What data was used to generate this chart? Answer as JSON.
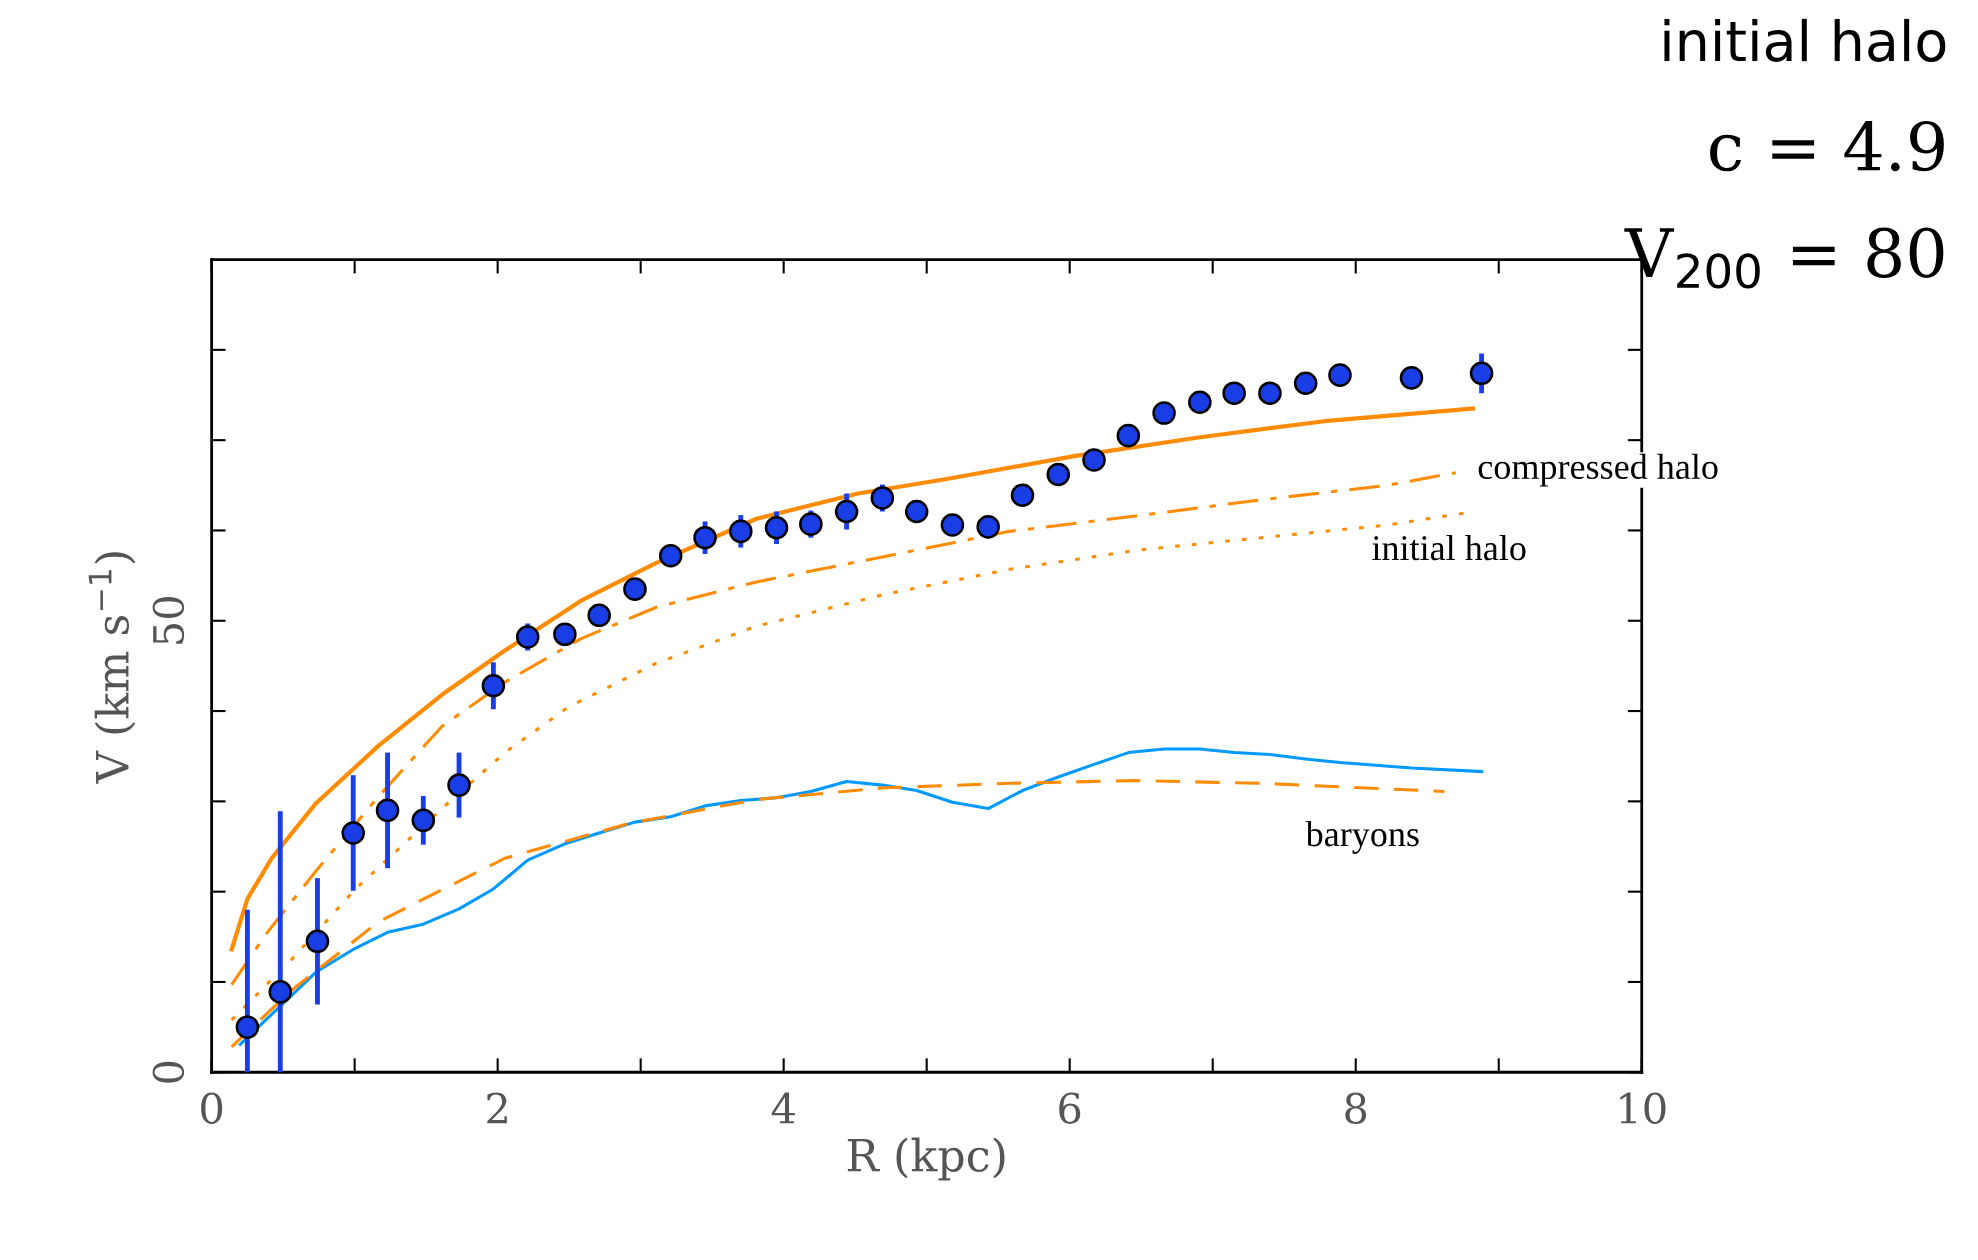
{
  "chart_data": {
    "type": "scatter",
    "xlabel": "R (kpc)",
    "ylabel": "V (km s$^{−1}$)",
    "xlim": [
      0,
      10
    ],
    "ylim": [
      0,
      90
    ],
    "xticks": [
      0,
      {
        "value": 1,
        "label": null
      },
      2,
      {
        "value": 3,
        "label": null
      },
      4,
      {
        "value": 5,
        "label": null
      },
      6,
      {
        "value": 7,
        "label": null
      },
      8,
      {
        "value": 9,
        "label": null
      },
      10
    ],
    "yticks": [
      0,
      {
        "value": 10,
        "label": null
      },
      {
        "value": 20,
        "label": null
      },
      {
        "value": 30,
        "label": null
      },
      {
        "value": 40,
        "label": null
      },
      50,
      {
        "value": 60,
        "label": null
      },
      {
        "value": 70,
        "label": null
      },
      {
        "value": 80,
        "label": null
      }
    ],
    "grid": false,
    "legend": false,
    "series": [
      {
        "type": "line",
        "color": "#ff8c00",
        "line_style": "solid",
        "x": [
          0.14,
          0.25,
          0.42,
          0.73,
          1.17,
          1.61,
          2.05,
          2.58,
          3.11,
          3.81,
          4.52,
          5.14,
          6.02,
          6.9,
          7.78,
          8.82
        ],
        "values": [
          13.6,
          19.2,
          23.7,
          29.8,
          36.2,
          41.8,
          46.7,
          52.2,
          56.4,
          61.3,
          64.1,
          65.7,
          68.2,
          70.3,
          72.1,
          73.5
        ]
      },
      {
        "type": "line",
        "color": "#ff8c00",
        "line_style": "dashdot",
        "x": [
          0.14,
          0.38,
          0.73,
          1.17,
          1.61,
          2.05,
          2.58,
          3.11,
          3.81,
          4.7,
          5.58,
          6.46,
          7.34,
          8.22,
          8.7
        ],
        "values": [
          9.7,
          15.3,
          22.3,
          30.6,
          38.3,
          43.2,
          48.0,
          51.5,
          54.3,
          57.1,
          59.9,
          61.6,
          63.4,
          65.0,
          66.4
        ]
      },
      {
        "type": "line",
        "color": "#ff8c00",
        "line_style": "dotted",
        "x": [
          0.14,
          0.56,
          1.0,
          1.61,
          2.05,
          2.49,
          3.11,
          3.81,
          4.7,
          5.58,
          6.46,
          7.34,
          8.22,
          8.79
        ],
        "values": [
          5.8,
          12.5,
          20.2,
          29.2,
          35.4,
          40.4,
          45.3,
          49.4,
          52.9,
          55.7,
          57.8,
          59.2,
          60.6,
          62.0
        ]
      },
      {
        "type": "line",
        "color": "#ff8c00",
        "line_style": "dashed",
        "x": [
          0.14,
          0.56,
          1.17,
          2.05,
          2.93,
          3.81,
          4.7,
          5.58,
          6.46,
          7.34,
          8.62
        ],
        "values": [
          2.8,
          9.1,
          16.7,
          23.7,
          27.6,
          30.2,
          31.5,
          32.0,
          32.3,
          32.0,
          31.1
        ]
      },
      {
        "type": "line",
        "color": "#0099ff",
        "line_style": "solid",
        "x": [
          0.2,
          0.73,
          0.99,
          1.23,
          1.48,
          1.73,
          1.97,
          2.21,
          2.47,
          2.71,
          2.96,
          3.21,
          3.45,
          3.7,
          3.95,
          4.19,
          4.44,
          4.69,
          4.93,
          5.18,
          5.43,
          5.67,
          5.92,
          6.17,
          6.41,
          6.66,
          6.91,
          7.15,
          7.4,
          7.65,
          7.89,
          8.39,
          8.88
        ],
        "values": [
          3.1,
          11.1,
          13.6,
          15.5,
          16.4,
          18.1,
          20.3,
          23.5,
          25.3,
          26.5,
          27.7,
          28.3,
          29.5,
          30.1,
          30.4,
          31.1,
          32.2,
          31.8,
          31.2,
          29.9,
          29.2,
          31.2,
          32.7,
          34.1,
          35.4,
          35.8,
          35.8,
          35.4,
          35.2,
          34.7,
          34.3,
          33.7,
          33.3
        ]
      },
      {
        "color": "#1a3ee6",
        "marker": "circle",
        "x": [
          0.25,
          0.48,
          0.74,
          0.99,
          1.23,
          1.48,
          1.73,
          1.97,
          2.21,
          2.47,
          2.71,
          2.96,
          3.21,
          3.45,
          3.7,
          3.95,
          4.19,
          4.44,
          4.69,
          4.93,
          5.18,
          5.43,
          5.67,
          5.92,
          6.17,
          6.41,
          6.66,
          6.91,
          7.15,
          7.4,
          7.65,
          7.89,
          8.39,
          8.88
        ],
        "values": [
          5.0,
          8.9,
          14.5,
          26.5,
          29.0,
          27.9,
          31.8,
          42.8,
          48.2,
          48.5,
          50.6,
          53.5,
          57.2,
          59.2,
          59.9,
          60.3,
          60.7,
          62.1,
          63.6,
          62.1,
          60.6,
          60.4,
          63.9,
          66.2,
          67.8,
          70.5,
          73.0,
          74.2,
          75.2,
          75.2,
          76.3,
          77.2,
          76.9,
          77.4
        ],
        "errors": [
          13,
          20,
          7,
          6.4,
          6.4,
          2.7,
          3.6,
          2.6,
          1.5,
          1,
          1,
          1,
          1,
          1.8,
          1.8,
          1.8,
          1.5,
          2,
          1.5,
          1,
          1,
          1,
          1,
          1,
          1,
          1,
          1,
          1,
          1,
          1,
          1,
          1,
          1.2,
          2.2
        ]
      }
    ],
    "annotations": [
      "compressed halo",
      "initial halo",
      "baryons",
      "initial halo",
      "c = 4.9",
      "V$_{200}$ = 80"
    ]
  }
}
